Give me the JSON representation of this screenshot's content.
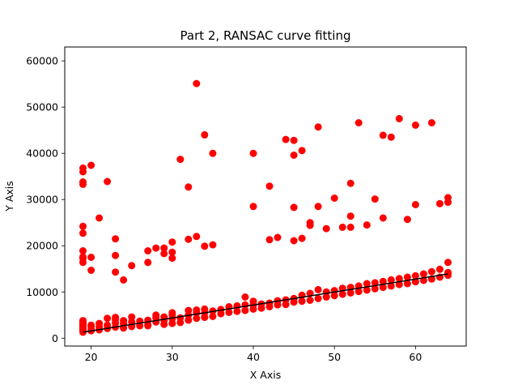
{
  "chart_data": {
    "type": "scatter",
    "title": "Part 2, RANSAC curve fitting",
    "xlabel": "X Axis",
    "ylabel": "Y Axis",
    "xlim": [
      16.75,
      66.25
    ],
    "ylim": [
      -1700,
      63000
    ],
    "xticks": [
      20,
      30,
      40,
      50,
      60
    ],
    "yticks": [
      0,
      10000,
      20000,
      30000,
      40000,
      50000,
      60000
    ],
    "grid": false,
    "legend": "none",
    "colors": {
      "points": "#ff0000",
      "fit_line": "#000000"
    },
    "fit_line": {
      "x": [
        19,
        64
      ],
      "y": [
        1300,
        13900
      ]
    },
    "series": [
      {
        "x": [
          19,
          19,
          19,
          19,
          19,
          19,
          19,
          19,
          19,
          19,
          19,
          19,
          19,
          20,
          20,
          20,
          20,
          21,
          21,
          21,
          22,
          22,
          22,
          23,
          23,
          23,
          23,
          24,
          24,
          24,
          25,
          25,
          25,
          26,
          26,
          27,
          27,
          27,
          28,
          28,
          28,
          29,
          29,
          29,
          30,
          30,
          30,
          30,
          31,
          31,
          32,
          32,
          32,
          33,
          33,
          33,
          34,
          34,
          34,
          35,
          35,
          36,
          36,
          37,
          37,
          38,
          38,
          39,
          39,
          39,
          40,
          40,
          40,
          41,
          41,
          42,
          42,
          43,
          43,
          44,
          44,
          45,
          45,
          46,
          46,
          47,
          47,
          48,
          48,
          49,
          49,
          50,
          50,
          51,
          51,
          52,
          52,
          53,
          53,
          54,
          54,
          55,
          55,
          56,
          56,
          57,
          57,
          58,
          58,
          59,
          59,
          60,
          60,
          61,
          61,
          62,
          62,
          63,
          63,
          64,
          64,
          64,
          64,
          19,
          19,
          19,
          19,
          19,
          19,
          19,
          19,
          19,
          19,
          20,
          20,
          20,
          21,
          22,
          23,
          23,
          23,
          24,
          25,
          27,
          27,
          28,
          29,
          29,
          30,
          30,
          30,
          31,
          32,
          32,
          33,
          33,
          34,
          34,
          35,
          35,
          40,
          40,
          42,
          42,
          43,
          44,
          45,
          45,
          45,
          45,
          46,
          46,
          47,
          47,
          48,
          48,
          49,
          50,
          51,
          52,
          52,
          52,
          53,
          54,
          55,
          56,
          56,
          57,
          58,
          59,
          60,
          60,
          62,
          63,
          64,
          64
        ],
        "y": [
          1300,
          1700,
          2100,
          2500,
          2800,
          3000,
          3200,
          3400,
          3600,
          3800,
          1900,
          2300,
          2600,
          1600,
          2000,
          2500,
          2800,
          1800,
          2400,
          3200,
          2100,
          2800,
          4300,
          2400,
          3300,
          4000,
          4500,
          2200,
          3100,
          3800,
          2500,
          3500,
          4600,
          2700,
          3700,
          2900,
          3900,
          2700,
          3500,
          4400,
          5000,
          3000,
          3900,
          4600,
          3200,
          4200,
          5000,
          5500,
          3400,
          4400,
          3900,
          5000,
          6000,
          4300,
          5500,
          6100,
          4500,
          5500,
          6300,
          4700,
          5900,
          5300,
          6200,
          5600,
          6800,
          5800,
          7000,
          6000,
          7200,
          8900,
          6300,
          7200,
          8000,
          6500,
          7400,
          6800,
          7600,
          7200,
          8100,
          7300,
          8300,
          7800,
          8600,
          8000,
          9300,
          8200,
          9700,
          8600,
          10500,
          8900,
          10000,
          9200,
          10300,
          9500,
          10800,
          9800,
          11000,
          10100,
          11300,
          10400,
          11800,
          10700,
          12000,
          11000,
          12300,
          11300,
          12600,
          11600,
          12900,
          11800,
          13200,
          12200,
          13500,
          12500,
          13900,
          12800,
          14400,
          13200,
          14900,
          13600,
          14200,
          16400,
          14100,
          36800,
          36000,
          33800,
          33300,
          24200,
          22700,
          18900,
          17600,
          17300,
          16400,
          37400,
          17500,
          14700,
          26000,
          33900,
          21500,
          17900,
          14300,
          12600,
          15700,
          16400,
          18900,
          19500,
          19500,
          18300,
          20800,
          18600,
          17300,
          38700,
          32700,
          21400,
          55100,
          22000,
          44000,
          19900,
          40000,
          20200,
          40000,
          28500,
          32900,
          21300,
          21800,
          43000,
          42800,
          39600,
          28300,
          21100,
          40600,
          21600,
          24400,
          25000,
          45700,
          28500,
          23700,
          30300,
          24000,
          24000,
          26400,
          33500,
          46600,
          24500,
          30100,
          43900,
          26000,
          43500,
          47500,
          25700,
          46100,
          28900,
          46600,
          29100,
          30400,
          29400
        ]
      }
    ]
  }
}
